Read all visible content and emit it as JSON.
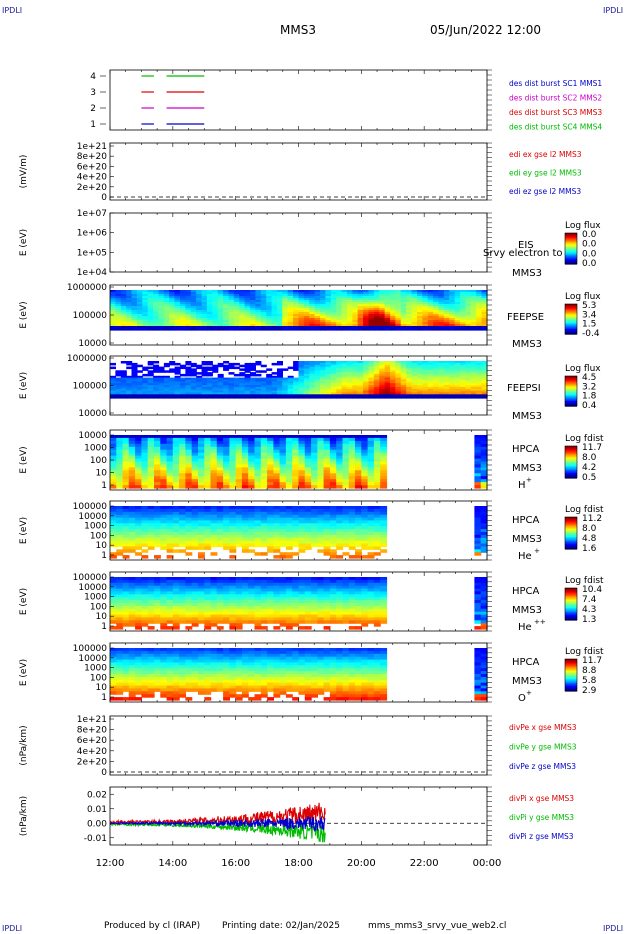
{
  "corners": {
    "tl": "IPDLI",
    "tr": "IPDLI",
    "bl": "IPDLI",
    "br": "IPDLI"
  },
  "header": {
    "spacecraft": "MMS3",
    "date": "05/Jun/2022 12:00"
  },
  "footer": {
    "produced": "Produced by cl (IRAP)",
    "printing": "Printing date: 02/Jan/2025",
    "file": "mms_mms3_srvy_vue_web2.cl"
  },
  "colors": {
    "mms1": "#0000cc",
    "mms2": "#cc00cc",
    "mms3": "#dd0000",
    "mms4": "#00bb00"
  },
  "chart_data": [
    {
      "id": "burst",
      "type": "line",
      "ylabels": [
        "4",
        "3",
        "2",
        "1"
      ],
      "series": [
        {
          "name": "des dist burst SC1 MMS1",
          "color": "#0000cc"
        },
        {
          "name": "des dist burst SC2 MMS2",
          "color": "#cc00cc"
        },
        {
          "name": "des dist burst SC3 MMS3",
          "color": "#dd0000"
        },
        {
          "name": "des dist burst SC4 MMS4",
          "color": "#00bb00"
        }
      ],
      "intervals_hours": [
        [
          13.0,
          13.4
        ],
        [
          13.8,
          15.0
        ]
      ]
    },
    {
      "id": "edi",
      "type": "line",
      "ylabel": "(mV/m)",
      "ticks": [
        "1e+21",
        "8e+20",
        "6e+20",
        "4e+20",
        "2e+20",
        "0"
      ],
      "series": [
        {
          "name": "edi ex gse l2 MMS3",
          "color": "#dd0000"
        },
        {
          "name": "edi ey gse l2 MMS3",
          "color": "#00bb00"
        },
        {
          "name": "edi ez gse l2 MMS3",
          "color": "#0000cc"
        }
      ]
    },
    {
      "id": "eis",
      "type": "heatmap",
      "ylabel": "E (eV)",
      "ticks": [
        "1e+07",
        "1e+06",
        "1e+05",
        "1e+04"
      ],
      "instrument": "EIS",
      "sc": "MMS3",
      "note": "Srvy electron to",
      "cb_title": "Log flux",
      "cb_ticks": [
        "0.0",
        "0.0",
        "0.0",
        "0.0"
      ]
    },
    {
      "id": "feepse",
      "type": "heatmap",
      "ylabel": "E (eV)",
      "ticks": [
        "1000000",
        "100000",
        "10000"
      ],
      "instrument": "FEEPSE",
      "sc": "MMS3",
      "cb_title": "Log flux",
      "cb_ticks": [
        "5.3",
        "3.4",
        "1.5",
        "-0.4"
      ]
    },
    {
      "id": "feepsi",
      "type": "heatmap",
      "ylabel": "E (eV)",
      "ticks": [
        "1000000",
        "100000",
        "10000"
      ],
      "instrument": "FEEPSI",
      "sc": "MMS3",
      "cb_title": "Log flux",
      "cb_ticks": [
        "4.5",
        "3.2",
        "1.8",
        "0.4"
      ]
    },
    {
      "id": "hpca_h",
      "type": "heatmap",
      "ylabel": "E (eV)",
      "ticks": [
        "10000",
        "1000",
        "100",
        "10",
        "1"
      ],
      "instrument": "HPCA",
      "sc": "MMS3",
      "species": "H",
      "charge": "+",
      "cb_title": "Log fdist",
      "cb_ticks": [
        "11.7",
        "8.0",
        "4.2",
        "0.5"
      ]
    },
    {
      "id": "hpca_he",
      "type": "heatmap",
      "ylabel": "E (eV)",
      "ticks": [
        "100000",
        "10000",
        "1000",
        "100",
        "10",
        "1"
      ],
      "instrument": "HPCA",
      "sc": "MMS3",
      "species": "He",
      "charge": "+",
      "cb_title": "Log fdist",
      "cb_ticks": [
        "11.2",
        "8.0",
        "4.8",
        "1.6"
      ]
    },
    {
      "id": "hpca_hepp",
      "type": "heatmap",
      "ylabel": "E (eV)",
      "ticks": [
        "100000",
        "10000",
        "1000",
        "100",
        "10",
        "1"
      ],
      "instrument": "HPCA",
      "sc": "MMS3",
      "species": "He",
      "charge": "++",
      "cb_title": "Log fdist",
      "cb_ticks": [
        "10.4",
        "7.4",
        "4.3",
        "1.3"
      ]
    },
    {
      "id": "hpca_o",
      "type": "heatmap",
      "ylabel": "E (eV)",
      "ticks": [
        "100000",
        "10000",
        "1000",
        "100",
        "10",
        "1"
      ],
      "instrument": "HPCA",
      "sc": "MMS3",
      "species": "O",
      "charge": "+",
      "cb_title": "Log fdist",
      "cb_ticks": [
        "11.7",
        "8.8",
        "5.8",
        "2.9"
      ]
    },
    {
      "id": "divpe",
      "type": "line",
      "ylabel": "(nPa/km)",
      "ticks": [
        "1e+21",
        "8e+20",
        "6e+20",
        "4e+20",
        "2e+20",
        "0"
      ],
      "series": [
        {
          "name": "divPe x gse MMS3",
          "color": "#dd0000"
        },
        {
          "name": "divPe y gse MMS3",
          "color": "#00bb00"
        },
        {
          "name": "divPe z gse MMS3",
          "color": "#0000cc"
        }
      ]
    },
    {
      "id": "divpi",
      "type": "line",
      "ylabel": "(nPa/km)",
      "ticks": [
        "0.02",
        "0.01",
        "0.00",
        "-0.01"
      ],
      "ylim": [
        -0.015,
        0.025
      ],
      "series": [
        {
          "name": "divPi x gse MMS3",
          "color": "#dd0000"
        },
        {
          "name": "divPi y gse MMS3",
          "color": "#00bb00"
        },
        {
          "name": "divPi z gse MMS3",
          "color": "#0000cc"
        }
      ],
      "x_end_hours": 18.85
    }
  ],
  "xaxis": {
    "labels": [
      "12:00",
      "14:00",
      "16:00",
      "18:00",
      "20:00",
      "22:00",
      "00:00"
    ],
    "hours": [
      12,
      14,
      16,
      18,
      20,
      22,
      24
    ],
    "range": [
      12,
      24
    ]
  }
}
